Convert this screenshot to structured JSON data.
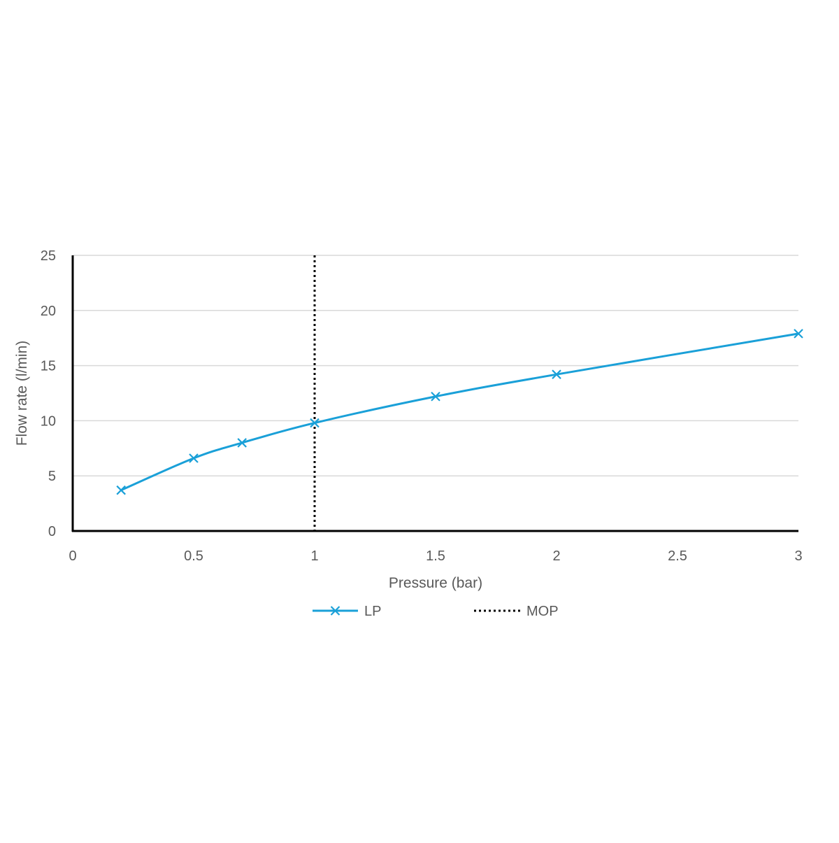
{
  "chart_data": {
    "type": "line",
    "title": "",
    "xlabel": "Pressure (bar)",
    "ylabel": "Flow rate (l/min)",
    "xlim": [
      0,
      3
    ],
    "ylim": [
      0,
      25
    ],
    "x_ticks": [
      "0",
      "0.5",
      "1",
      "1.5",
      "2",
      "2.5",
      "3"
    ],
    "y_ticks": [
      "0",
      "5",
      "10",
      "15",
      "20",
      "25"
    ],
    "grid": "horizontal",
    "legend_position": "bottom",
    "series": [
      {
        "name": "LP",
        "color": "#1aa0d8",
        "marker": "x",
        "smooth": true,
        "x": [
          0.2,
          0.5,
          0.7,
          1.0,
          1.5,
          2.0,
          3.0
        ],
        "y": [
          3.7,
          6.6,
          8.0,
          9.8,
          12.2,
          14.2,
          17.9
        ]
      }
    ],
    "reference_lines": [
      {
        "name": "MOP",
        "orientation": "vertical",
        "x": 1.0,
        "color": "#000000",
        "style": "dotted"
      }
    ]
  }
}
